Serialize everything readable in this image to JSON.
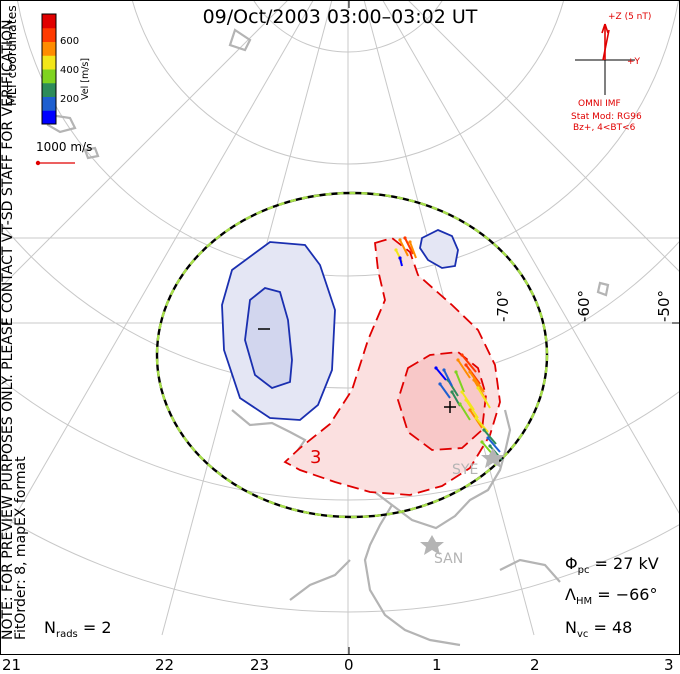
{
  "title": "09/Oct/2003 03:00–03:02 UT",
  "coords_label": "MLT coordinates",
  "colorbar": {
    "title": "Vel [m/s]",
    "ticks": [
      "600",
      "400",
      "200"
    ],
    "colors": [
      "#0000ff",
      "#1e5fd0",
      "#2d8c5a",
      "#7fd320",
      "#f2e61a",
      "#ff8c00",
      "#ff3a00",
      "#e00000"
    ]
  },
  "scale_vector_label": "1000 m/s",
  "verification_note": "NOTE: FOR PREVIEW PURPOSES ONLY. PLEASE CONTACT VT-SD STAFF FOR VERIFICATION.",
  "fit_order_label": "FitOrder: 8, mapEX format",
  "imf": {
    "z_label": "+Z (5 nT)",
    "y_label": "+Y",
    "source": "OMNI IMF",
    "model": "Stat Mod: RG96",
    "condition": "Bz+, 4<BT<6"
  },
  "stats": {
    "phi_pc": {
      "symbol": "Φ",
      "sub": "pc",
      "value": "= 27 kV"
    },
    "lambda_hm": {
      "symbol": "Λ",
      "sub": "HM",
      "value": "= −66°"
    },
    "n_vc": {
      "symbol": "N",
      "sub": "vc",
      "value": "= 48"
    },
    "n_rads": {
      "symbol": "N",
      "sub": "rads",
      "value": "= 2"
    }
  },
  "mlt_axis": [
    "21",
    "22",
    "23",
    "0",
    "1",
    "2",
    "3"
  ],
  "lat_labels": [
    "-70°",
    "-60°",
    "-50°"
  ],
  "stations": [
    "SYE",
    "SAN"
  ],
  "potential_markers": {
    "min": "−",
    "max": "+",
    "contour_label": "3"
  },
  "colors": {
    "positive": "#e00000",
    "negative": "#1a2fb0",
    "grid": "#c8c8c8",
    "land": "#b4b4b4",
    "hmb_a": "#000000",
    "hmb_b": "#a8e04a"
  }
}
